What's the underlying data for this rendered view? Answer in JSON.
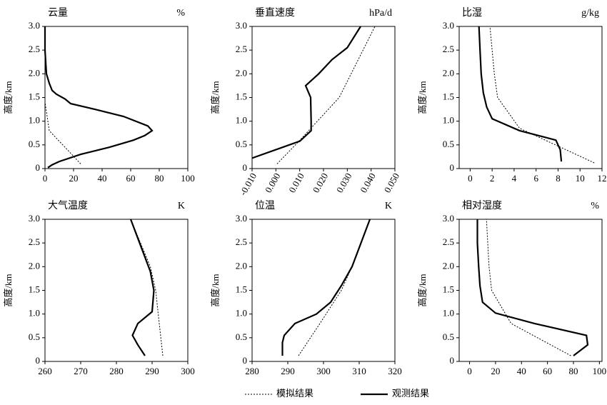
{
  "chart_data": [
    {
      "type": "line",
      "title": "云量",
      "unit": "%",
      "ylabel": "高度/km",
      "xlim": [
        0,
        100
      ],
      "xticks": [
        0,
        20,
        40,
        60,
        80,
        100
      ],
      "ylim": [
        0,
        3
      ],
      "yticks": [
        0,
        0.5,
        {
          "value": 1,
          "label": "1.0"
        },
        1.5,
        {
          "value": 2,
          "label": "2.0"
        },
        2.5,
        {
          "value": 3,
          "label": "3.0"
        }
      ],
      "series": [
        {
          "style": "dotted",
          "x": [
            25,
            3,
            0,
            0
          ],
          "y": [
            0.1,
            0.8,
            1.4,
            1.6
          ]
        },
        {
          "style": "solid",
          "x": [
            2,
            5,
            10,
            25,
            45,
            62,
            70,
            75,
            72,
            55,
            35,
            18,
            14,
            8,
            5,
            3,
            1,
            0,
            0
          ],
          "y": [
            0.02,
            0.08,
            0.15,
            0.3,
            0.45,
            0.6,
            0.7,
            0.8,
            0.9,
            1.1,
            1.25,
            1.37,
            1.47,
            1.57,
            1.65,
            1.8,
            2.0,
            2.5,
            3.0
          ]
        }
      ]
    },
    {
      "type": "line",
      "title": "垂直速度",
      "unit": "hPa/d",
      "ylabel": "高度/km",
      "rotate_xticks": true,
      "xlim": [
        -0.01,
        0.05
      ],
      "xticks": [
        {
          "value": -0.01,
          "label": "-0.010"
        },
        {
          "value": 0,
          "label": "0.000"
        },
        {
          "value": 0.01,
          "label": "0.010"
        },
        {
          "value": 0.02,
          "label": "0.020"
        },
        {
          "value": 0.03,
          "label": "0.030"
        },
        {
          "value": 0.04,
          "label": "0.040"
        },
        {
          "value": 0.05,
          "label": "0.050"
        }
      ],
      "ylim": [
        0,
        3
      ],
      "yticks": [
        0,
        0.5,
        {
          "value": 1,
          "label": "1.0"
        },
        1.5,
        {
          "value": 2,
          "label": "2.0"
        },
        2.5,
        {
          "value": 3,
          "label": "3.0"
        }
      ],
      "series": [
        {
          "style": "dotted",
          "x": [
            0.0005,
            0.0101,
            0.0266,
            0.0416
          ],
          "y": [
            0.1,
            0.6,
            1.5,
            3.0
          ]
        },
        {
          "style": "solid",
          "x": [
            -0.01,
            0.0101,
            0.0148,
            0.0148,
            0.0146,
            0.0125,
            0.018,
            0.0236,
            0.03,
            0.0356
          ],
          "y": [
            0.22,
            0.58,
            0.8,
            1.0,
            1.5,
            1.75,
            2.0,
            2.3,
            2.55,
            3.0
          ]
        }
      ]
    },
    {
      "type": "line",
      "title": "比湿",
      "unit": "g/kg",
      "ylabel": "高度/km",
      "xlim": [
        -1,
        12
      ],
      "xticks": [
        0,
        2,
        4,
        6,
        8,
        10,
        12
      ],
      "ylim": [
        0,
        3
      ],
      "yticks": [
        0,
        0.5,
        {
          "value": 1,
          "label": "1.0"
        },
        1.5,
        {
          "value": 2,
          "label": "2.0"
        },
        2.5,
        {
          "value": 3,
          "label": "3.0"
        }
      ],
      "series": [
        {
          "style": "dotted",
          "x": [
            11.3,
            4.5,
            2.5,
            2.2,
            1.8
          ],
          "y": [
            0.12,
            0.85,
            1.5,
            2.0,
            3.0
          ]
        },
        {
          "style": "solid",
          "x": [
            8.3,
            8.2,
            7.8,
            4.5,
            2.0,
            1.5,
            1.2,
            1.0,
            0.9,
            0.8
          ],
          "y": [
            0.15,
            0.4,
            0.6,
            0.8,
            1.05,
            1.3,
            1.6,
            2.0,
            2.5,
            3.0
          ]
        }
      ]
    },
    {
      "type": "line",
      "title": "大气温度",
      "unit": "K",
      "ylabel": "高度/km",
      "xlim": [
        260,
        300
      ],
      "xticks": [
        260,
        270,
        280,
        290,
        300
      ],
      "ylim": [
        0,
        3
      ],
      "yticks": [
        0,
        0.5,
        {
          "value": 1,
          "label": "1.0"
        },
        1.5,
        {
          "value": 2,
          "label": "2.0"
        },
        2.5,
        {
          "value": 3,
          "label": "3.0"
        }
      ],
      "series": [
        {
          "style": "dotted",
          "x": [
            293,
            292,
            291,
            289.5,
            284
          ],
          "y": [
            0.12,
            0.8,
            1.5,
            2.0,
            3.0
          ]
        },
        {
          "style": "solid",
          "x": [
            288,
            286,
            284.5,
            286,
            290,
            290.5,
            289.5,
            287,
            284
          ],
          "y": [
            0.12,
            0.35,
            0.55,
            0.8,
            1.05,
            1.5,
            1.9,
            2.4,
            3.0
          ]
        }
      ]
    },
    {
      "type": "line",
      "title": "位温",
      "unit": "K",
      "ylabel": "高度/km",
      "xlim": [
        280,
        320
      ],
      "xticks": [
        280,
        290,
        300,
        310,
        320
      ],
      "ylim": [
        0,
        3
      ],
      "yticks": [
        0,
        0.5,
        {
          "value": 1,
          "label": "1.0"
        },
        1.5,
        {
          "value": 2,
          "label": "2.0"
        },
        2.5,
        {
          "value": 3,
          "label": "3.0"
        }
      ],
      "series": [
        {
          "style": "dotted",
          "x": [
            293,
            299,
            305,
            308,
            313
          ],
          "y": [
            0.12,
            0.8,
            1.5,
            2.0,
            3.0
          ]
        },
        {
          "style": "solid",
          "x": [
            288.5,
            288.5,
            289,
            292,
            298,
            302,
            305,
            308,
            313
          ],
          "y": [
            0.12,
            0.4,
            0.55,
            0.8,
            1.0,
            1.25,
            1.6,
            2.0,
            3.0
          ]
        }
      ]
    },
    {
      "type": "line",
      "title": "相对湿度",
      "unit": "%",
      "ylabel": "高度/km",
      "xlim": [
        -8,
        102
      ],
      "xticks": [
        0,
        20,
        40,
        60,
        80,
        100
      ],
      "ylim": [
        0,
        3
      ],
      "yticks": [
        0,
        0.5,
        {
          "value": 1,
          "label": "1.0"
        },
        1.5,
        {
          "value": 2,
          "label": "2.0"
        },
        2.5,
        {
          "value": 3,
          "label": "3.0"
        }
      ],
      "series": [
        {
          "style": "dotted",
          "x": [
            78,
            32,
            17,
            15,
            13
          ],
          "y": [
            0.12,
            0.8,
            1.5,
            2.0,
            3.0
          ]
        },
        {
          "style": "solid",
          "x": [
            80,
            91,
            90,
            50,
            20,
            10,
            8,
            7,
            6,
            6
          ],
          "y": [
            0.12,
            0.35,
            0.55,
            0.8,
            1.02,
            1.25,
            1.6,
            2.0,
            2.5,
            3.0
          ]
        }
      ]
    }
  ],
  "legend": [
    {
      "name": "模拟结果",
      "style": "dotted"
    },
    {
      "name": "观测结果",
      "style": "solid"
    }
  ]
}
